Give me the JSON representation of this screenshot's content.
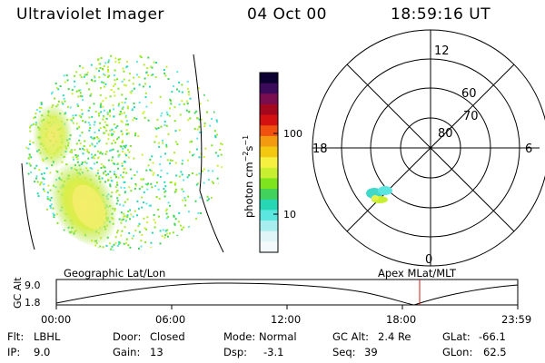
{
  "header": {
    "instrument": "Ultraviolet Imager",
    "date": "04 Oct 00",
    "time": "18:59:16 UT"
  },
  "colorbar": {
    "unit_label": "photon cm",
    "exp1": "−2",
    "mid": "s",
    "exp2": "−1",
    "ticks": [
      "100",
      "10"
    ],
    "colors": [
      "#0b0030",
      "#3b0a5a",
      "#7a0c50",
      "#a5081e",
      "#d41010",
      "#f05010",
      "#f39a10",
      "#f4c810",
      "#f6f040",
      "#c8f030",
      "#7ee41e",
      "#40d25a",
      "#26d6b4",
      "#5ce6e0",
      "#a8eef0",
      "#dff5f7",
      "#f4fafb"
    ]
  },
  "polar_plot": {
    "lat_labels": [
      "60",
      "70",
      "80"
    ],
    "mlt_labels": {
      "top": "12",
      "right": "6",
      "bottom": "0",
      "left": "18"
    }
  },
  "timeline": {
    "left_title": "Geographic Lat/Lon",
    "right_title": "Apex MLat/MLT",
    "ylabel": "GC Alt",
    "yticks": [
      "9.0",
      "1.8"
    ],
    "xticks": [
      "00:00",
      "06:00",
      "12:00",
      "18:00",
      "23:59"
    ],
    "marker_color": "#d01818"
  },
  "status": {
    "row1": [
      {
        "key": "Flt:",
        "val": "LBHL"
      },
      {
        "key": "Door:",
        "val": "Closed"
      },
      {
        "key": "Mode:",
        "val": "Normal"
      },
      {
        "key": "GC Alt:",
        "val": "2.4 Re"
      },
      {
        "key": "GLat:",
        "val": "-66.1"
      }
    ],
    "row2": [
      {
        "key": "IP:",
        "val": "9.0"
      },
      {
        "key": "Gain:",
        "val": "13"
      },
      {
        "key": "Dsp:",
        "val": "-3.1"
      },
      {
        "key": "Seq:",
        "val": "39"
      },
      {
        "key": "GLon:",
        "val": "62.5"
      }
    ]
  }
}
